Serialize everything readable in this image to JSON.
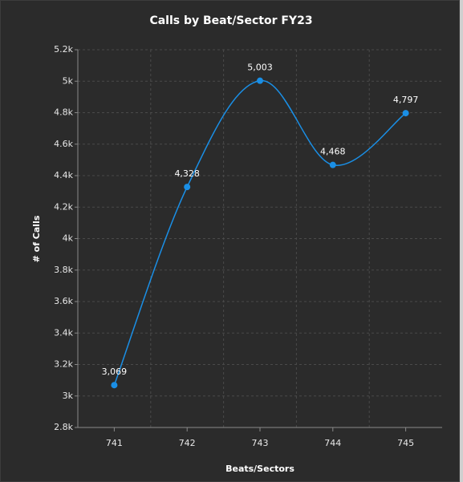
{
  "chart_data": {
    "type": "line",
    "title": "Calls by Beat/Sector FY23",
    "x_label": "Beats/Sectors",
    "y_label": "# of Calls",
    "categories": [
      "741",
      "742",
      "743",
      "744",
      "745"
    ],
    "series": [
      {
        "name": "# of Calls",
        "color": "#1a8fe6",
        "values": [
          3069,
          4328,
          5003,
          4468,
          4797
        ],
        "value_labels": [
          "3,069",
          "4,328",
          "5,003",
          "4,468",
          "4,797"
        ]
      }
    ],
    "ylim": [
      2800,
      5200
    ],
    "yticks": [
      {
        "value": 2800,
        "label": "2.8k"
      },
      {
        "value": 3000,
        "label": "3k"
      },
      {
        "value": 3200,
        "label": "3.2k"
      },
      {
        "value": 3400,
        "label": "3.4k"
      },
      {
        "value": 3600,
        "label": "3.6k"
      },
      {
        "value": 3800,
        "label": "3.8k"
      },
      {
        "value": 4000,
        "label": "4k"
      },
      {
        "value": 4200,
        "label": "4.2k"
      },
      {
        "value": 4400,
        "label": "4.4k"
      },
      {
        "value": 4600,
        "label": "4.6k"
      },
      {
        "value": 4800,
        "label": "4.8k"
      },
      {
        "value": 5000,
        "label": "5k"
      },
      {
        "value": 5200,
        "label": "5.2k"
      }
    ],
    "grid": true
  }
}
